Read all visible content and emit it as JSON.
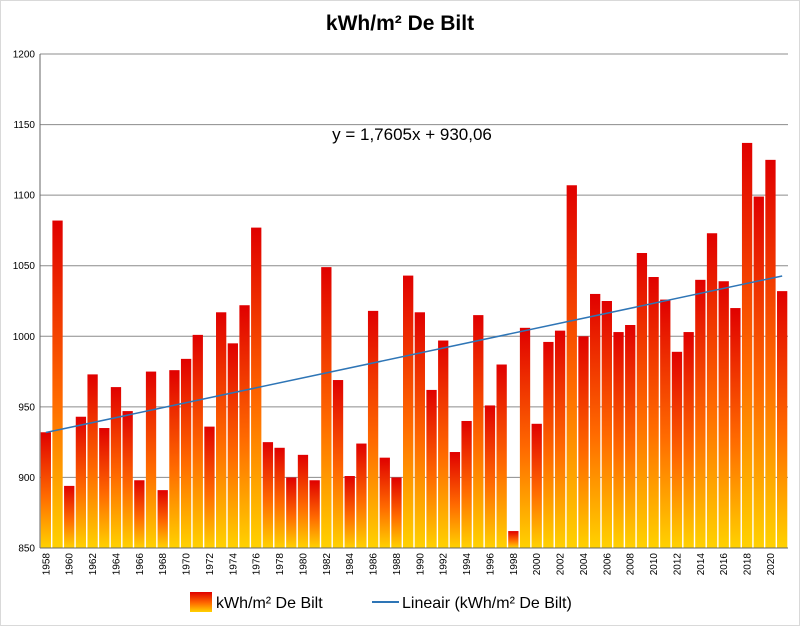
{
  "chart_data": {
    "type": "bar",
    "title": "kWh/m² De Bilt",
    "xlabel": "",
    "ylabel": "",
    "ylim": [
      850,
      1200
    ],
    "yticks": [
      850,
      900,
      950,
      1000,
      1050,
      1100,
      1150,
      1200
    ],
    "grid": true,
    "categories": [
      1958,
      1959,
      1960,
      1961,
      1962,
      1963,
      1964,
      1965,
      1966,
      1967,
      1968,
      1969,
      1970,
      1971,
      1972,
      1973,
      1974,
      1975,
      1976,
      1977,
      1978,
      1979,
      1980,
      1981,
      1982,
      1983,
      1984,
      1985,
      1986,
      1987,
      1988,
      1989,
      1990,
      1991,
      1992,
      1993,
      1994,
      1995,
      1996,
      1997,
      1998,
      1999,
      2000,
      2001,
      2002,
      2003,
      2004,
      2005,
      2006,
      2007,
      2008,
      2009,
      2010,
      2011,
      2012,
      2013,
      2014,
      2015,
      2016,
      2017,
      2018,
      2019,
      2020,
      2021
    ],
    "xtick_labels": [
      "1958",
      "1960",
      "1962",
      "1964",
      "1966",
      "1968",
      "1970",
      "1972",
      "1974",
      "1976",
      "1978",
      "1980",
      "1982",
      "1984",
      "1986",
      "1988",
      "1990",
      "1992",
      "1994",
      "1996",
      "1998",
      "2000",
      "2002",
      "2004",
      "2006",
      "2008",
      "2010",
      "2012",
      "2014",
      "2016",
      "2018",
      "2020"
    ],
    "series": [
      {
        "name": "kWh/m² De Bilt",
        "values": [
          932,
          1082,
          894,
          943,
          973,
          935,
          964,
          947,
          898,
          975,
          891,
          976,
          984,
          1001,
          936,
          1017,
          995,
          1022,
          1077,
          925,
          921,
          900,
          916,
          898,
          1049,
          969,
          901,
          924,
          1018,
          914,
          900,
          1043,
          1017,
          962,
          997,
          918,
          940,
          1015,
          951,
          980,
          862,
          1006,
          938,
          996,
          1004,
          1107,
          1000,
          1030,
          1025,
          1003,
          1008,
          1059,
          1042,
          1026,
          989,
          1003,
          1040,
          1073,
          1039,
          1020,
          1137,
          1099,
          1125,
          1032
        ]
      }
    ],
    "trendline": {
      "name": "Lineair (kWh/m² De Bilt)",
      "slope": 1.7605,
      "intercept": 930.06,
      "equation": "y = 1,7605x + 930,06"
    },
    "legend": "bottom",
    "colors": {
      "bar_top": "#e00000",
      "bar_bottom": "#ffd200",
      "trend": "#2e75b6",
      "grid": "#8c8c8c",
      "axis": "#666666"
    }
  }
}
